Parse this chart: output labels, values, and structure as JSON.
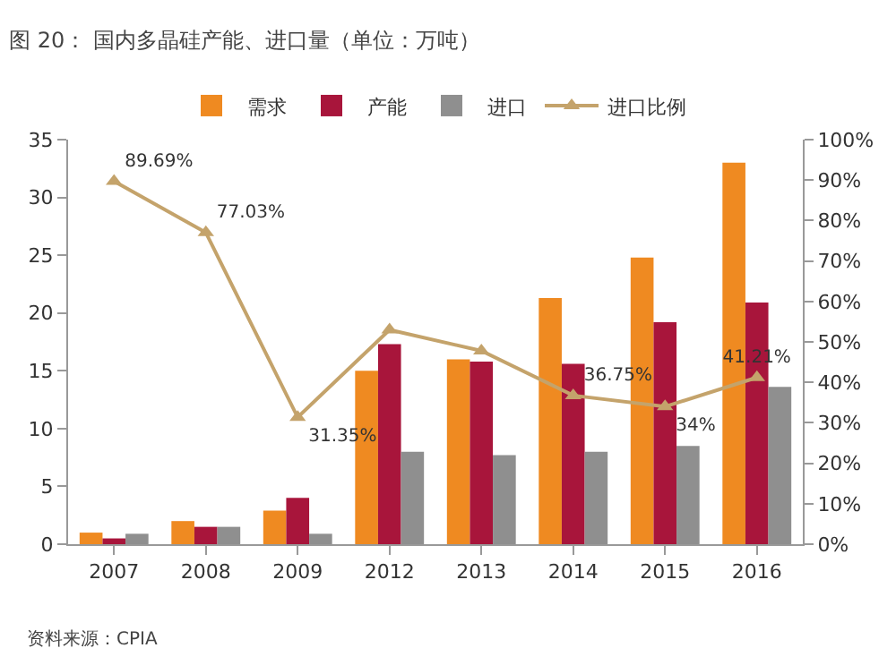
{
  "chart_data": {
    "type": "bar",
    "title": "图 20： 国内多晶硅产能、进口量（单位：万吨）",
    "categories": [
      "2007",
      "2008",
      "2009",
      "2012",
      "2013",
      "2014",
      "2015",
      "2016"
    ],
    "series": [
      {
        "name": "需求",
        "color": "#ef8a21",
        "values": [
          1.0,
          2.0,
          2.9,
          15,
          16,
          21.3,
          24.8,
          33.0
        ]
      },
      {
        "name": "产能",
        "color": "#a8153b",
        "values": [
          0.5,
          1.5,
          4.0,
          17.3,
          15.8,
          15.6,
          19.2,
          20.9
        ]
      },
      {
        "name": "进口",
        "color": "#8f8f8f",
        "values": [
          0.9,
          1.5,
          0.9,
          8.0,
          7.7,
          8.0,
          8.5,
          13.6
        ]
      },
      {
        "name": "进口比例",
        "type": "line",
        "axis": "y2",
        "color": "#c4a36b",
        "marker": "triangle",
        "values": [
          89.69,
          77.03,
          31.35,
          53,
          47.8,
          36.75,
          34,
          41.21
        ],
        "value_labels": [
          "89.69%",
          "77.03%",
          "31.35%",
          null,
          null,
          "36.75%",
          "34%",
          "41.21%"
        ]
      }
    ],
    "ylim": [
      0,
      35
    ],
    "yticks": [
      0,
      5,
      10,
      15,
      20,
      25,
      30,
      35
    ],
    "y2lim": [
      0,
      100
    ],
    "y2ticks": [
      {
        "value": 0,
        "label": "0%"
      },
      {
        "value": 10,
        "label": "10%"
      },
      {
        "value": 20,
        "label": "20%"
      },
      {
        "value": 30,
        "label": "30%"
      },
      {
        "value": 40,
        "label": "40%"
      },
      {
        "value": 50,
        "label": "50%"
      },
      {
        "value": 60,
        "label": "60%"
      },
      {
        "value": 70,
        "label": "70%"
      },
      {
        "value": 80,
        "label": "80%"
      },
      {
        "value": 90,
        "label": "90%"
      },
      {
        "value": 100,
        "label": "100%"
      }
    ],
    "grid": false,
    "legend": "top",
    "annotations": [
      "资料来源：CPIA"
    ]
  }
}
